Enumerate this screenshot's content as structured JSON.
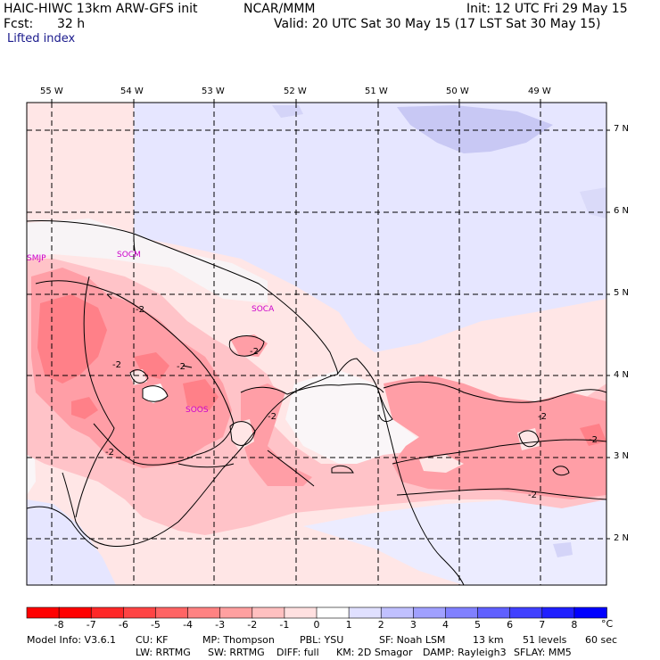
{
  "header": {
    "model_title": "HAIC-HIWC 13km ARW-GFS init",
    "org": "NCAR/MMM",
    "init": "Init: 12 UTC Fri 29 May 15",
    "fcst_label": "Fcst:",
    "fcst_value": "32 h",
    "valid": "Valid: 20 UTC Sat 30 May 15 (17 LST Sat 30 May 15)",
    "field": "Lifted index"
  },
  "map": {
    "lon_labels": [
      "55 W",
      "54 W",
      "53 W",
      "52 W",
      "51 W",
      "50 W",
      "49 W"
    ],
    "lat_labels": [
      "7 N",
      "6 N",
      "5 N",
      "4 N",
      "3 N",
      "2 N"
    ],
    "stations": [
      "SMJP",
      "SOCM",
      "SOCA",
      "SOOS"
    ],
    "contour_labels": [
      "-2",
      "-2",
      "-2",
      "-2",
      "-2",
      "-2",
      "-2",
      "-2",
      "-2"
    ]
  },
  "colorbar": {
    "unit": "°C",
    "labels": [
      "-8",
      "-7",
      "-6",
      "-5",
      "-4",
      "-3",
      "-2",
      "-1",
      "0",
      "1",
      "2",
      "3",
      "4",
      "5",
      "6",
      "7",
      "8"
    ],
    "colors": [
      "#ff0000",
      "#ff2828",
      "#ff4444",
      "#ff6464",
      "#ff8282",
      "#ffa0a0",
      "#ffc0c0",
      "#ffe0e0",
      "#ffffff",
      "#e0e0ff",
      "#c0c0ff",
      "#a0a0ff",
      "#8080ff",
      "#6060ff",
      "#4040ff",
      "#2020ff",
      "#0000ff"
    ]
  },
  "footer": {
    "line1": [
      "Model Info: V3.6.1",
      "CU: KF",
      "MP: Thompson",
      "PBL: YSU",
      "SF: Noah LSM",
      "13 km",
      "51 levels",
      "60 sec"
    ],
    "line2": [
      "LW: RRTMG",
      "SW: RRTMG",
      "DIFF: full",
      "KM: 2D Smagor",
      "DAMP: Rayleigh3",
      "SFLAY: MM5"
    ]
  }
}
